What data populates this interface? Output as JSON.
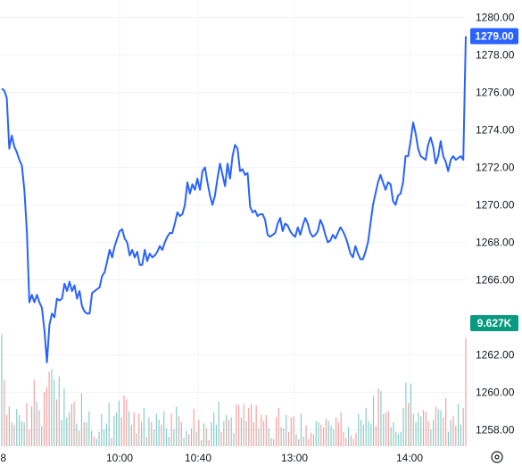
{
  "chart_data": {
    "type": "line",
    "x_ticks": [
      "8",
      "10:00",
      "10:40",
      "13:00",
      "14:00"
    ],
    "ylim": [
      1257.5,
      1280.5
    ],
    "y_ticks": [
      "1280.00",
      "1278.00",
      "1276.00",
      "1274.00",
      "1272.00",
      "1270.00",
      "1268.00",
      "1266.00",
      "1262.00",
      "1260.00",
      "1258.00"
    ],
    "grid": true,
    "series": [
      {
        "values": [
          1276.2,
          1276.1,
          1275.7,
          1273.0,
          1273.7,
          1273.1,
          1272.8,
          1272.4,
          1272.1,
          1270.8,
          1268.6,
          1264.8,
          1265.2,
          1264.8,
          1265.2,
          1264.8,
          1264.5,
          1263.3,
          1261.6,
          1263.6,
          1264.2,
          1264.0,
          1265.0,
          1264.9,
          1265.0,
          1265.8,
          1265.4,
          1265.9,
          1265.4,
          1265.7,
          1265.0,
          1265.4,
          1264.6,
          1264.3,
          1264.2,
          1264.2,
          1265.3,
          1265.4,
          1265.5,
          1265.6,
          1266.2,
          1266.4,
          1267.0,
          1267.6,
          1267.2,
          1267.8,
          1268.2,
          1268.6,
          1268.7,
          1268.2,
          1268.0,
          1267.3,
          1267.6,
          1267.2,
          1267.5,
          1266.8,
          1266.8,
          1267.6,
          1267.0,
          1267.4,
          1267.2,
          1267.3,
          1267.5,
          1267.8,
          1267.6,
          1268.0,
          1268.3,
          1268.5,
          1268.5,
          1269.0,
          1269.6,
          1269.4,
          1269.5,
          1270.0,
          1271.2,
          1270.6,
          1271.1,
          1270.8,
          1271.4,
          1270.8,
          1271.8,
          1272.0,
          1271.2,
          1270.5,
          1270.0,
          1270.5,
          1271.4,
          1272.2,
          1271.6,
          1271.0,
          1272.2,
          1271.4,
          1272.6,
          1273.2,
          1273.0,
          1271.8,
          1271.9,
          1271.6,
          1271.7,
          1269.9,
          1269.6,
          1269.7,
          1269.4,
          1269.5,
          1269.5,
          1269.2,
          1268.4,
          1268.3,
          1268.4,
          1268.5,
          1269.0,
          1269.3,
          1268.6,
          1269.0,
          1268.9,
          1268.6,
          1268.4,
          1268.3,
          1268.8,
          1268.4,
          1268.9,
          1269.3,
          1269.0,
          1268.5,
          1268.3,
          1268.4,
          1268.6,
          1269.2,
          1268.9,
          1268.4,
          1268.0,
          1268.1,
          1268.4,
          1268.2,
          1268.5,
          1268.8,
          1268.6,
          1268.3,
          1267.9,
          1267.4,
          1267.2,
          1267.8,
          1267.4,
          1267.1,
          1267.1,
          1267.5,
          1268.0,
          1269.0,
          1270.0,
          1270.6,
          1271.2,
          1271.6,
          1271.2,
          1270.8,
          1271.2,
          1271.1,
          1270.2,
          1270.0,
          1270.5,
          1270.6,
          1271.2,
          1272.6,
          1272.6,
          1273.4,
          1274.4,
          1273.8,
          1273.0,
          1272.6,
          1272.5,
          1272.4,
          1273.2,
          1273.6,
          1273.1,
          1272.2,
          1272.6,
          1273.4,
          1272.6,
          1272.3,
          1271.8,
          1272.4,
          1272.6,
          1272.4,
          1272.5,
          1272.6,
          1272.4,
          1279.0
        ]
      }
    ],
    "volume": {
      "ytick_label": "9.627K",
      "bars_up": [
        1,
        0,
        0,
        1,
        1,
        0,
        1,
        1,
        1,
        1,
        0,
        0,
        1,
        0,
        1,
        0,
        1,
        0,
        0,
        0,
        1,
        1,
        0,
        1,
        1,
        1,
        1,
        0,
        1,
        0,
        1,
        0,
        1,
        0,
        1,
        1,
        1,
        0,
        1,
        1,
        1,
        1,
        1,
        1,
        0,
        1,
        1,
        1,
        0,
        0,
        0,
        1,
        0,
        0,
        1,
        0,
        1,
        1,
        0,
        1,
        0,
        1,
        1,
        1,
        0,
        1,
        1,
        1,
        0,
        1,
        1,
        0,
        1,
        1,
        1,
        0,
        1,
        0,
        1,
        0,
        1,
        1,
        0,
        0,
        1,
        1,
        1,
        1,
        0,
        0,
        1,
        0,
        1,
        1,
        0,
        0,
        1,
        0,
        1,
        0,
        0,
        0,
        0,
        1,
        0,
        0,
        0,
        1,
        0,
        1,
        0,
        0,
        1,
        0,
        1,
        0,
        0,
        0,
        1,
        0,
        1,
        1,
        0,
        0,
        0,
        1,
        1,
        1,
        0,
        0,
        0,
        1,
        1,
        1,
        0,
        0,
        0,
        0,
        0,
        1,
        0,
        0,
        0,
        1,
        1,
        1,
        1,
        1,
        1,
        1,
        0,
        0,
        1,
        1,
        0,
        0,
        1,
        1,
        1,
        1,
        1,
        1,
        1,
        0,
        1,
        0,
        1,
        1,
        1,
        0,
        0,
        0,
        1,
        1,
        0,
        1,
        1,
        0,
        0,
        1,
        1,
        0,
        0,
        1,
        1
      ],
      "values": [
        0.93,
        0.55,
        0.26,
        0.33,
        0.2,
        0.18,
        0.31,
        0.26,
        0.21,
        0.2,
        0.36,
        0.14,
        0.33,
        0.55,
        0.37,
        0.3,
        0.17,
        0.45,
        0.49,
        0.62,
        0.64,
        0.55,
        0.39,
        0.58,
        0.22,
        0.48,
        0.24,
        0.28,
        0.35,
        0.37,
        0.19,
        0.13,
        0.44,
        0.2,
        0.2,
        0.29,
        0.13,
        0.08,
        0.06,
        0.12,
        0.27,
        0.14,
        0.19,
        0.36,
        0.07,
        0.25,
        0.28,
        0.38,
        0.24,
        0.42,
        0.39,
        0.29,
        0.18,
        0.28,
        0.11,
        0.27,
        0.2,
        0.32,
        0.08,
        0.24,
        0.2,
        0.14,
        0.27,
        0.22,
        0.18,
        0.29,
        0.15,
        0.08,
        0.27,
        0.14,
        0.33,
        0.25,
        0.2,
        0.07,
        0.13,
        0.1,
        0.15,
        0.31,
        0.12,
        0.22,
        0.05,
        0.19,
        0.15,
        0.05,
        0.2,
        0.28,
        0.18,
        0.37,
        0.12,
        0.21,
        0.26,
        0.22,
        0.24,
        0.11,
        0.35,
        0.34,
        0.24,
        0.35,
        0.21,
        0.32,
        0.35,
        0.2,
        0.34,
        0.15,
        0.26,
        0.21,
        0.26,
        0.15,
        0.07,
        0.06,
        0.24,
        0.32,
        0.16,
        0.15,
        0.26,
        0.12,
        0.24,
        0.25,
        0.1,
        0.06,
        0.27,
        0.08,
        0.17,
        0.06,
        0.11,
        0.1,
        0.21,
        0.2,
        0.18,
        0.16,
        0.23,
        0.21,
        0.17,
        0.14,
        0.24,
        0.2,
        0.28,
        0.12,
        0.07,
        0.16,
        0.09,
        0.06,
        0.11,
        0.27,
        0.22,
        0.18,
        0.32,
        0.21,
        0.19,
        0.42,
        0.17,
        0.48,
        0.46,
        0.27,
        0.28,
        0.29,
        0.16,
        0.2,
        0.12,
        0.1,
        0.12,
        0.32,
        0.53,
        0.36,
        0.52,
        0.27,
        0.2,
        0.28,
        0.25,
        0.3,
        0.29,
        0.21,
        0.14,
        0.22,
        0.33,
        0.31,
        0.3,
        0.24,
        0.4,
        0.12,
        0.22,
        0.25,
        0.17,
        0.35,
        0.18,
        0.32,
        0.9
      ]
    },
    "last_price_label": "1279.00",
    "colors": {
      "line": "#2962ff",
      "grid": "#f0f3fa",
      "volume_up": "#26a69a",
      "volume_down": "#ef5350",
      "last_price_bg": "#2962ff",
      "volume_label_bg": "#089981",
      "text": "#131722"
    }
  },
  "settings_icon": "gear-icon"
}
